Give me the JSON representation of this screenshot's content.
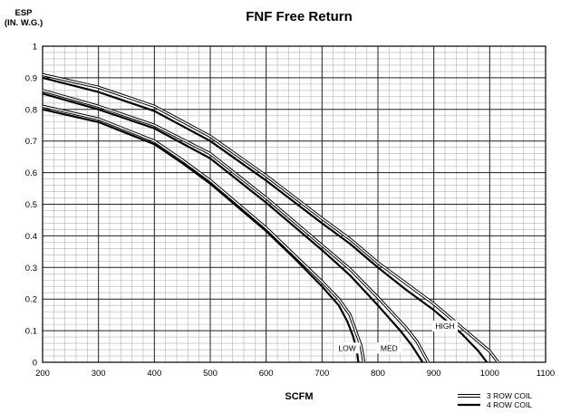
{
  "chart_data": {
    "type": "line",
    "title": "FNF Free Return",
    "ylabel_line1": "ESP",
    "ylabel_line2": "(IN. W.G.)",
    "xlabel": "SCFM",
    "xlim": [
      200,
      1100
    ],
    "ylim": [
      0,
      1
    ],
    "x_ticks": [
      "200",
      "300",
      "400",
      "500",
      "600",
      "700",
      "800",
      "900",
      "1000",
      "1100"
    ],
    "y_ticks": [
      "0",
      "0.1",
      "0.2",
      "0.3",
      "0.4",
      "0.5",
      "0.6",
      "0.7",
      "0.8",
      "0.9",
      "1"
    ],
    "grid": true,
    "legend": [
      {
        "label": "3 ROW COIL",
        "style": "double-line"
      },
      {
        "label": "4 ROW COIL",
        "style": "thick-line"
      }
    ],
    "legend_position": "bottom-right",
    "series": [
      {
        "curve": "LOW",
        "coil": "3 ROW COIL",
        "x": [
          200,
          300,
          400,
          450,
          500,
          550,
          600,
          650,
          700,
          730,
          750,
          760,
          770,
          775
        ],
        "y": [
          0.81,
          0.77,
          0.7,
          0.64,
          0.575,
          0.5,
          0.425,
          0.34,
          0.255,
          0.2,
          0.15,
          0.1,
          0.05,
          0.0
        ]
      },
      {
        "curve": "LOW",
        "coil": "4 ROW COIL",
        "x": [
          200,
          300,
          400,
          450,
          500,
          550,
          600,
          650,
          700,
          730,
          745,
          755,
          762,
          765
        ],
        "y": [
          0.8,
          0.76,
          0.69,
          0.63,
          0.565,
          0.49,
          0.415,
          0.33,
          0.24,
          0.18,
          0.13,
          0.085,
          0.04,
          0.0
        ]
      },
      {
        "curve": "MED",
        "coil": "3 ROW COIL",
        "x": [
          200,
          300,
          400,
          500,
          600,
          650,
          700,
          750,
          800,
          850,
          870,
          890
        ],
        "y": [
          0.86,
          0.81,
          0.75,
          0.66,
          0.52,
          0.445,
          0.37,
          0.295,
          0.205,
          0.11,
          0.065,
          0.0
        ]
      },
      {
        "curve": "MED",
        "coil": "4 ROW COIL",
        "x": [
          200,
          300,
          400,
          500,
          600,
          650,
          700,
          750,
          800,
          840,
          860,
          880
        ],
        "y": [
          0.85,
          0.8,
          0.74,
          0.645,
          0.505,
          0.43,
          0.355,
          0.275,
          0.18,
          0.1,
          0.055,
          0.0
        ]
      },
      {
        "curve": "HIGH",
        "coil": "3 ROW COIL",
        "x": [
          200,
          300,
          400,
          500,
          600,
          700,
          750,
          800,
          850,
          900,
          950,
          1000,
          1015
        ],
        "y": [
          0.91,
          0.87,
          0.81,
          0.715,
          0.59,
          0.455,
          0.39,
          0.315,
          0.25,
          0.185,
          0.11,
          0.035,
          0.0
        ]
      },
      {
        "curve": "HIGH",
        "coil": "4 ROW COIL",
        "x": [
          200,
          300,
          400,
          500,
          600,
          700,
          750,
          800,
          850,
          900,
          950,
          980,
          995
        ],
        "y": [
          0.9,
          0.855,
          0.795,
          0.7,
          0.575,
          0.44,
          0.375,
          0.3,
          0.23,
          0.165,
          0.09,
          0.035,
          0.0
        ]
      }
    ],
    "curve_labels": [
      {
        "text": "LOW",
        "x": 745,
        "y": 0.045
      },
      {
        "text": "MED",
        "x": 820,
        "y": 0.045
      },
      {
        "text": "HIGH",
        "x": 920,
        "y": 0.115
      }
    ]
  }
}
